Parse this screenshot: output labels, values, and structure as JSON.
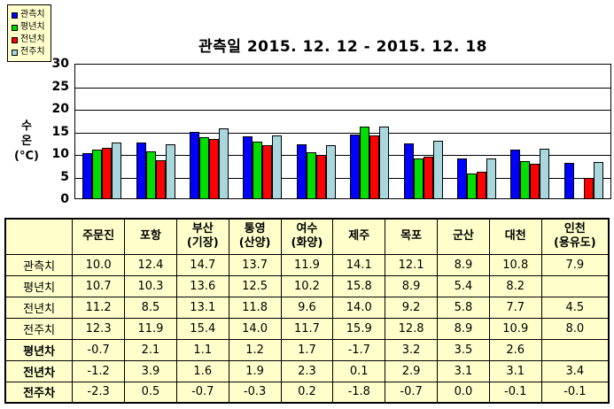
{
  "title": "관측일 2015. 12. 12 - 2015. 12. 18",
  "colors": {
    "background": "#FFFFFF",
    "panel_yellow": "#FFFFCC",
    "series_blue": "#0000FF",
    "series_green": "#00DD00",
    "series_red": "#FF0000",
    "series_pale_cyan": "#A8D8DC",
    "line_black": "#000000"
  },
  "legend": {
    "items": [
      {
        "label": "관측치",
        "color": "#0000FF"
      },
      {
        "label": "평년치",
        "color": "#00DD00"
      },
      {
        "label": "전년치",
        "color": "#FF0000"
      },
      {
        "label": "전주치",
        "color": "#A8D8DC"
      }
    ]
  },
  "y_axis": {
    "title_lines": "수\n온\n(°C)",
    "ticks": [
      30,
      25,
      20,
      15,
      10,
      5,
      0
    ]
  },
  "chart_data": {
    "type": "bar",
    "title": "관측일 2015. 12. 12 - 2015. 12. 18",
    "xlabel": "",
    "ylabel": "수온(°C)",
    "ylim": [
      0,
      30
    ],
    "grid": "horizontal",
    "legend_position": "top-left",
    "categories": [
      "주문진",
      "포항",
      "부산(기장)",
      "통영(산양)",
      "여수(화양)",
      "제주",
      "목포",
      "군산",
      "대천",
      "인천(용유도)"
    ],
    "series": [
      {
        "name": "관측치",
        "color": "#0000FF",
        "values": [
          10.0,
          12.4,
          14.7,
          13.7,
          11.9,
          14.1,
          12.1,
          8.9,
          10.8,
          7.9
        ]
      },
      {
        "name": "평년치",
        "color": "#00DD00",
        "values": [
          10.7,
          10.3,
          13.6,
          12.5,
          10.2,
          15.8,
          8.9,
          5.4,
          8.2,
          null
        ]
      },
      {
        "name": "전년치",
        "color": "#FF0000",
        "values": [
          11.2,
          8.5,
          13.1,
          11.8,
          9.6,
          14.0,
          9.2,
          5.8,
          7.7,
          4.5
        ]
      },
      {
        "name": "전주치",
        "color": "#A8D8DC",
        "values": [
          12.3,
          11.9,
          15.4,
          14.0,
          11.7,
          15.9,
          12.8,
          8.9,
          10.9,
          8.0
        ]
      }
    ]
  },
  "table": {
    "corner_label": "",
    "columns": [
      "주문진",
      "포항",
      "부산\n(기장)",
      "통영\n(산양)",
      "여수\n(화양)",
      "제주",
      "목포",
      "군산",
      "대천",
      "인천\n(용유도)"
    ],
    "rows": [
      {
        "label": "관측치",
        "bold": false,
        "values": [
          "10.0",
          "12.4",
          "14.7",
          "13.7",
          "11.9",
          "14.1",
          "12.1",
          "8.9",
          "10.8",
          "7.9"
        ]
      },
      {
        "label": "평년치",
        "bold": false,
        "values": [
          "10.7",
          "10.3",
          "13.6",
          "12.5",
          "10.2",
          "15.8",
          "8.9",
          "5.4",
          "8.2",
          ""
        ]
      },
      {
        "label": "전년치",
        "bold": false,
        "values": [
          "11.2",
          "8.5",
          "13.1",
          "11.8",
          "9.6",
          "14.0",
          "9.2",
          "5.8",
          "7.7",
          "4.5"
        ]
      },
      {
        "label": "전주치",
        "bold": false,
        "values": [
          "12.3",
          "11.9",
          "15.4",
          "14.0",
          "11.7",
          "15.9",
          "12.8",
          "8.9",
          "10.9",
          "8.0"
        ]
      },
      {
        "label": "평년차",
        "bold": true,
        "values": [
          "-0.7",
          "2.1",
          "1.1",
          "1.2",
          "1.7",
          "-1.7",
          "3.2",
          "3.5",
          "2.6",
          ""
        ]
      },
      {
        "label": "전년차",
        "bold": true,
        "values": [
          "-1.2",
          "3.9",
          "1.6",
          "1.9",
          "2.3",
          "0.1",
          "2.9",
          "3.1",
          "3.1",
          "3.4"
        ]
      },
      {
        "label": "전주차",
        "bold": true,
        "values": [
          "-2.3",
          "0.5",
          "-0.7",
          "-0.3",
          "0.2",
          "-1.8",
          "-0.7",
          "0.0",
          "-0.1",
          "-0.1"
        ]
      }
    ]
  }
}
